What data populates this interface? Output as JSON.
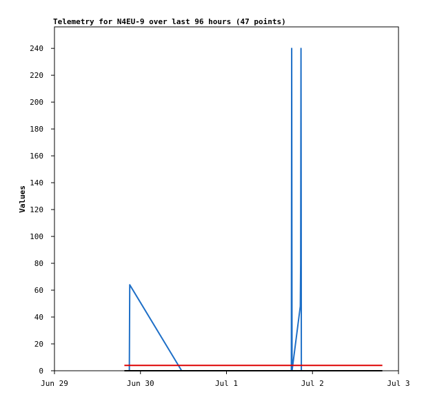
{
  "chart_data": {
    "type": "line",
    "title": "Telemetry for N4EU-9 over last 96 hours (47 points)",
    "xlabel": "",
    "ylabel": "Values",
    "xlim": [
      0,
      96
    ],
    "ylim": [
      0,
      256
    ],
    "grid": false,
    "legend": "none",
    "x_ticks": [
      {
        "x": 0,
        "label": "Jun 29"
      },
      {
        "x": 24,
        "label": "Jun 30"
      },
      {
        "x": 48,
        "label": "Jul 1"
      },
      {
        "x": 72,
        "label": "Jul 2"
      },
      {
        "x": 96,
        "label": "Jul 3"
      }
    ],
    "y_ticks": [
      0,
      20,
      40,
      60,
      80,
      100,
      120,
      140,
      160,
      180,
      200,
      220,
      240
    ],
    "series": [
      {
        "color": "#1e6fc7",
        "points": [
          [
            20.9,
            0
          ],
          [
            20.95,
            32
          ],
          [
            21.0,
            64
          ],
          [
            35.5,
            0
          ],
          [
            66.1,
            0
          ],
          [
            66.2,
            240
          ],
          [
            66.3,
            0
          ],
          [
            68.6,
            48
          ],
          [
            68.7,
            80
          ],
          [
            68.8,
            240
          ],
          [
            68.85,
            120
          ],
          [
            68.9,
            0
          ]
        ]
      },
      {
        "color": "#dd0000",
        "points": [
          [
            19.5,
            4
          ],
          [
            91.5,
            4
          ]
        ]
      },
      {
        "color": "#000000",
        "points": [
          [
            19.5,
            0
          ],
          [
            91.5,
            0
          ]
        ]
      }
    ]
  }
}
